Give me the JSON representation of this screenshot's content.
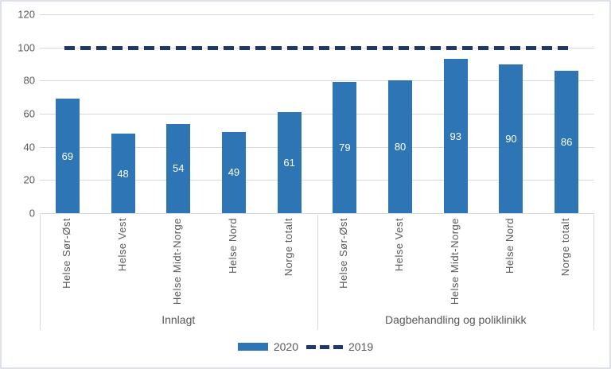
{
  "chart_data": {
    "type": "bar",
    "title": "",
    "series_name": "2020",
    "reference_line": {
      "name": "2019",
      "value": 100,
      "style": "dashed"
    },
    "groups": [
      {
        "label": "Innlagt",
        "categories": [
          "Helse Sør-Øst",
          "Helse Vest",
          "Helse Midt-Norge",
          "Helse Nord",
          "Norge totalt"
        ],
        "values": [
          69,
          48,
          54,
          49,
          61
        ]
      },
      {
        "label": "Dagbehandling og poliklinikk",
        "categories": [
          "Helse Sør-Øst",
          "Helse Vest",
          "Helse Midt-Norge",
          "Helse Nord",
          "Norge totalt"
        ],
        "values": [
          79,
          80,
          93,
          90,
          86
        ]
      }
    ],
    "y_axis": {
      "min": 0,
      "max": 120,
      "ticks": [
        0,
        20,
        40,
        60,
        80,
        100,
        120
      ]
    },
    "grid": true,
    "legend": {
      "position": "bottom",
      "items": [
        {
          "label": "2020",
          "swatch": "bar"
        },
        {
          "label": "2019",
          "swatch": "dashed-line"
        }
      ]
    },
    "colors": {
      "bar": "#2e75b6",
      "reference_line": "#1f3864",
      "gridline": "#d9d9d9",
      "axis_text": "#595959",
      "bar_label_text": "#ffffff",
      "frame_border": "#dde2e9"
    }
  }
}
